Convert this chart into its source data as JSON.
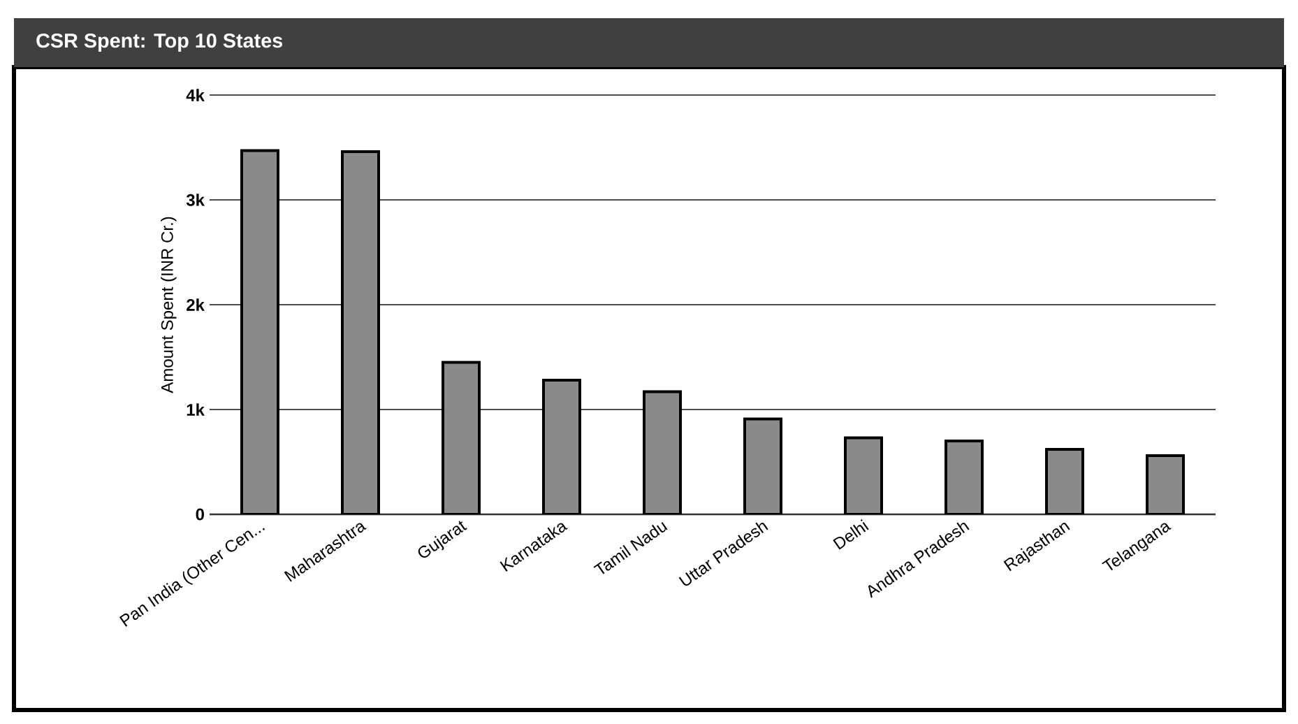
{
  "chart_data": {
    "type": "bar",
    "title": "CSR Spent: Top 10 States",
    "ylabel": "Amount Spent (INR Cr.)",
    "categories": [
      "Pan India (Other Cen...",
      "Maharashtra",
      "Gujarat",
      "Karnataka",
      "Tamil Nadu",
      "Uttar Pradesh",
      "Delhi",
      "Andhra Pradesh",
      "Rajasthan",
      "Telangana"
    ],
    "values": [
      3470,
      3460,
      1450,
      1280,
      1170,
      910,
      730,
      700,
      620,
      560
    ],
    "color": "#8a8a8a",
    "ylim": [
      0,
      4000
    ],
    "yticks": [
      {
        "value": 0,
        "label": "0"
      },
      {
        "value": 1000,
        "label": "1k"
      },
      {
        "value": 2000,
        "label": "2k"
      },
      {
        "value": 3000,
        "label": "3k"
      },
      {
        "value": 4000,
        "label": "4k"
      }
    ],
    "grid": "y"
  }
}
